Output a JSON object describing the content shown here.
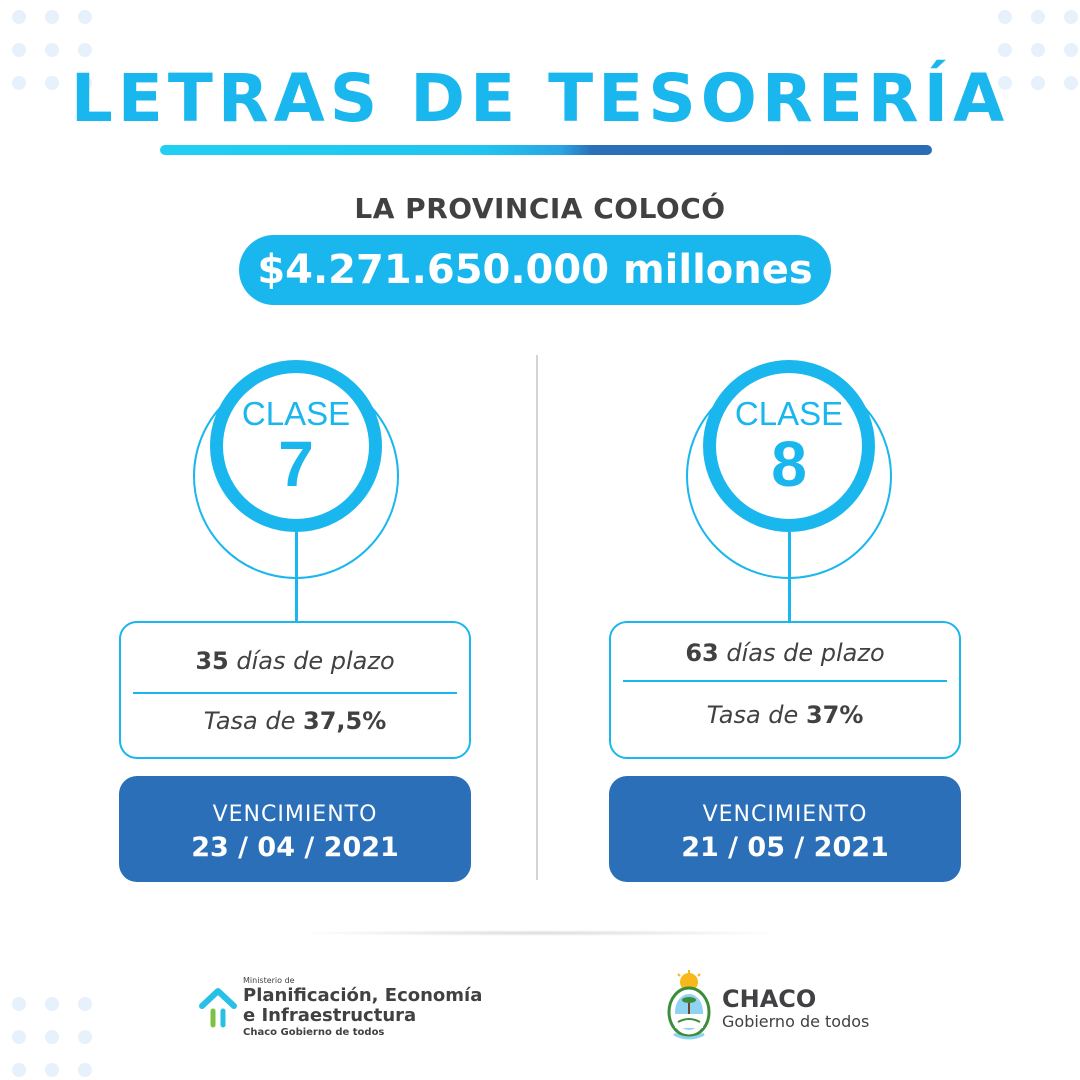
{
  "header": {
    "title": "LETRAS DE TESORERÍA",
    "subtitle": "LA PROVINCIA COLOCÓ",
    "amount": "$4.271.650.000 millones"
  },
  "classes": [
    {
      "label": "CLASE",
      "number": "7",
      "days_value": "35",
      "days_text": "días de plazo",
      "rate_text": "Tasa de",
      "rate_value": "37,5%",
      "maturity_label": "VENCIMIENTO",
      "maturity_date": "23 / 04 / 2021"
    },
    {
      "label": "CLASE",
      "number": "8",
      "days_value": "63",
      "days_text": "días de plazo",
      "rate_text": "Tasa de",
      "rate_value": "37%",
      "maturity_label": "VENCIMIENTO",
      "maturity_date": "21 / 05 / 2021"
    }
  ],
  "footer": {
    "ministry": {
      "prefix": "Ministerio de",
      "line1": "Planificación, Economía",
      "line2": "e Infraestructura",
      "tagline": "Chaco Gobierno de todos",
      "icon": "house-icon"
    },
    "chaco": {
      "name": "CHACO",
      "tagline": "Gobierno de todos",
      "icon": "provincial-seal-icon"
    }
  },
  "colors": {
    "cyan": "#1ab6ee",
    "blue": "#2a6fb8",
    "text": "#414143",
    "dots": "#e6f1fb"
  }
}
